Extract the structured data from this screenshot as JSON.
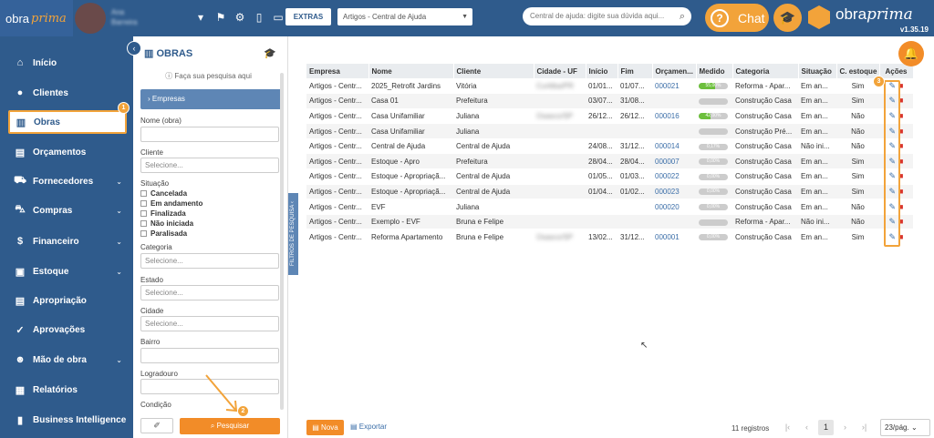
{
  "header": {
    "logo_text": "obra",
    "logo_italic": "prima",
    "user_name_line1": "Ana",
    "user_name_line2": "Barreira",
    "extras_label": "EXTRAS",
    "help_select_value": "Artigos - Central de Ajuda",
    "search_placeholder": "Central de ajuda: digite sua dúvida aqui...",
    "chat_label": "Chat",
    "brand_text": "obra",
    "brand_italic": "prima",
    "version": "v1.35.19",
    "accent_color": "#f2a33a",
    "primary_color": "#2f5b8c"
  },
  "sidebar": {
    "items": [
      {
        "label": "Início",
        "icon": "home-icon"
      },
      {
        "label": "Clientes",
        "icon": "user-icon"
      },
      {
        "label": "Obras",
        "icon": "building-icon"
      },
      {
        "label": "Orçamentos",
        "icon": "document-icon"
      },
      {
        "label": "Fornecedores",
        "icon": "truck-icon"
      },
      {
        "label": "Compras",
        "icon": "cart-icon"
      },
      {
        "label": "Financeiro",
        "icon": "dollar-icon"
      },
      {
        "label": "Estoque",
        "icon": "box-icon"
      },
      {
        "label": "Apropriação",
        "icon": "document-icon"
      },
      {
        "label": "Aprovações",
        "icon": "thumbs-up-icon"
      },
      {
        "label": "Mão de obra",
        "icon": "workers-icon"
      },
      {
        "label": "Relatórios",
        "icon": "report-icon"
      },
      {
        "label": "Business Intelligence",
        "icon": "bar-chart-icon"
      }
    ]
  },
  "filters": {
    "title": "OBRAS",
    "hint": "Faça sua pesquisa aqui",
    "tab_empresas": "Empresas",
    "nome_label": "Nome (obra)",
    "cliente_label": "Cliente",
    "cliente_placeholder": "Selecione...",
    "situacao_label": "Situação",
    "situacoes": [
      "Cancelada",
      "Em andamento",
      "Finalizada",
      "Não iniciada",
      "Paralisada"
    ],
    "categoria_label": "Categoria",
    "categoria_placeholder": "Selecione...",
    "estado_label": "Estado",
    "estado_placeholder": "Selecione...",
    "cidade_label": "Cidade",
    "cidade_placeholder": "Selecione...",
    "bairro_label": "Bairro",
    "logradouro_label": "Logradouro",
    "condicao_label": "Condição",
    "search_button": "Pesquisar",
    "vertical_tab": "FILTROS DE PESQUISA"
  },
  "badges": {
    "one": "1",
    "two": "2",
    "three": "3"
  },
  "table": {
    "columns": [
      "Empresa",
      "Nome",
      "Cliente",
      "Cidade - UF",
      "Início",
      "Fim",
      "Orçamen...",
      "Medido",
      "Categoria",
      "Situação",
      "C. estoque",
      "Ações"
    ],
    "rows": [
      {
        "empresa": "Artigos - Centr...",
        "nome": "2025_Retrofit Jardins",
        "cliente": "Vitória",
        "cidade": "Curitiba/PR",
        "inicio": "01/01...",
        "fim": "01/07...",
        "orc": "000021",
        "medido": "55,00%",
        "medido_pct": 55,
        "categoria": "Reforma - Apar...",
        "situacao": "Em an...",
        "estoque": "Sim"
      },
      {
        "empresa": "Artigos - Centr...",
        "nome": "Casa 01",
        "cliente": "Prefeitura",
        "cidade": "",
        "inicio": "03/07...",
        "fim": "31/08...",
        "orc": "",
        "medido": "",
        "medido_pct": 0,
        "categoria": "Construção Casa",
        "situacao": "Em an...",
        "estoque": "Sim"
      },
      {
        "empresa": "Artigos - Centr...",
        "nome": "Casa Unifamiliar",
        "cliente": "Juliana",
        "cidade": "Osasco/SP",
        "inicio": "26/12...",
        "fim": "26/12...",
        "orc": "000016",
        "medido": "42,00%",
        "medido_pct": 42,
        "categoria": "Construção Casa",
        "situacao": "Em an...",
        "estoque": "Não"
      },
      {
        "empresa": "Artigos - Centr...",
        "nome": "Casa Unifamiliar",
        "cliente": "Juliana",
        "cidade": "",
        "inicio": "",
        "fim": "",
        "orc": "",
        "medido": "",
        "medido_pct": 0,
        "categoria": "Construção Pré...",
        "situacao": "Em an...",
        "estoque": "Não"
      },
      {
        "empresa": "Artigos - Centr...",
        "nome": "Central de Ajuda",
        "cliente": "Central de Ajuda",
        "cidade": "",
        "inicio": "24/08...",
        "fim": "31/12...",
        "orc": "000014",
        "medido": "0,17%",
        "medido_pct": 0.17,
        "categoria": "Construção Casa",
        "situacao": "Não ini...",
        "estoque": "Não"
      },
      {
        "empresa": "Artigos - Centr...",
        "nome": "Estoque - Apro",
        "cliente": "Prefeitura",
        "cidade": "",
        "inicio": "28/04...",
        "fim": "28/04...",
        "orc": "000007",
        "medido": "0,00%",
        "medido_pct": 0,
        "categoria": "Construção Casa",
        "situacao": "Em an...",
        "estoque": "Sim"
      },
      {
        "empresa": "Artigos - Centr...",
        "nome": "Estoque - Apropriaçã...",
        "cliente": "Central de Ajuda",
        "cidade": "",
        "inicio": "01/05...",
        "fim": "01/03...",
        "orc": "000022",
        "medido": "0,00%",
        "medido_pct": 0,
        "categoria": "Construção Casa",
        "situacao": "Em an...",
        "estoque": "Sim"
      },
      {
        "empresa": "Artigos - Centr...",
        "nome": "Estoque - Apropriaçã...",
        "cliente": "Central de Ajuda",
        "cidade": "",
        "inicio": "01/04...",
        "fim": "01/02...",
        "orc": "000023",
        "medido": "0,00%",
        "medido_pct": 0,
        "categoria": "Construção Casa",
        "situacao": "Em an...",
        "estoque": "Sim"
      },
      {
        "empresa": "Artigos - Centr...",
        "nome": "EVF",
        "cliente": "Juliana",
        "cidade": "",
        "inicio": "",
        "fim": "",
        "orc": "000020",
        "medido": "0,00%",
        "medido_pct": 0,
        "categoria": "Construção Casa",
        "situacao": "Em an...",
        "estoque": "Não"
      },
      {
        "empresa": "Artigos - Centr...",
        "nome": "Exemplo - EVF",
        "cliente": "Bruna e Felipe",
        "cidade": "",
        "inicio": "",
        "fim": "",
        "orc": "",
        "medido": "",
        "medido_pct": 0,
        "categoria": "Reforma - Apar...",
        "situacao": "Não ini...",
        "estoque": "Não"
      },
      {
        "empresa": "Artigos - Centr...",
        "nome": "Reforma Apartamento",
        "cliente": "Bruna e Felipe",
        "cidade": "Osasco/SP",
        "inicio": "13/02...",
        "fim": "31/12...",
        "orc": "000001",
        "medido": "0,00%",
        "medido_pct": 0,
        "categoria": "Construção Casa",
        "situacao": "Em an...",
        "estoque": "Sim"
      }
    ]
  },
  "footer": {
    "nova_label": "Nova",
    "export_label": "Exportar",
    "registros": "11 registros",
    "current_page": "1",
    "per_page": "23/pág."
  }
}
